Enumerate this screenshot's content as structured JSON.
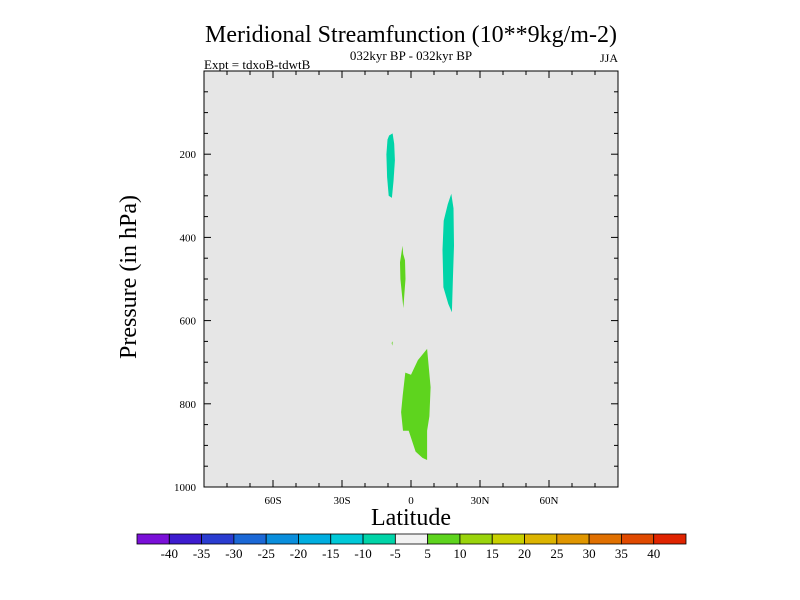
{
  "chart_data": {
    "type": "heatmap",
    "title": "Meridional Streamfunction (10**9kg/m-2)",
    "subtitle": "032kyr BP - 032kyr BP",
    "left_note": "Expt = tdxoB-tdwtB",
    "right_note": "JJA",
    "xlabel": "Latitude",
    "ylabel": "Pressure (in hPa)",
    "xlim": [
      -90,
      90
    ],
    "ylim": [
      0,
      1000
    ],
    "y_inverted": true,
    "x_ticks": [
      {
        "value": -60,
        "label": "60S"
      },
      {
        "value": -30,
        "label": "30S"
      },
      {
        "value": 0,
        "label": "0"
      },
      {
        "value": 30,
        "label": "30N"
      },
      {
        "value": 60,
        "label": "60N"
      }
    ],
    "y_ticks": [
      {
        "value": 200,
        "label": "200"
      },
      {
        "value": 400,
        "label": "400"
      },
      {
        "value": 600,
        "label": "600"
      },
      {
        "value": 800,
        "label": "800"
      },
      {
        "value": 1000,
        "label": "1000"
      }
    ],
    "background_color": "#e6e6e6",
    "regions": [
      {
        "name": "negative-cell-upper",
        "color": "#00d4a8",
        "polygon": [
          [
            -9.5,
            155
          ],
          [
            -8,
            150
          ],
          [
            -7.3,
            175
          ],
          [
            -7,
            215
          ],
          [
            -7.6,
            265
          ],
          [
            -8.3,
            305
          ],
          [
            -9.7,
            300
          ],
          [
            -10.4,
            255
          ],
          [
            -10.7,
            200
          ],
          [
            -10.2,
            165
          ]
        ]
      },
      {
        "name": "negative-cell-mid",
        "color": "#00d4a8",
        "polygon": [
          [
            16,
            320
          ],
          [
            17.5,
            295
          ],
          [
            18.5,
            330
          ],
          [
            18.7,
            420
          ],
          [
            18.2,
            500
          ],
          [
            17.8,
            580
          ],
          [
            16.2,
            560
          ],
          [
            14.1,
            520
          ],
          [
            13.7,
            430
          ],
          [
            14.2,
            360
          ]
        ]
      },
      {
        "name": "positive-strip",
        "color": "#5ed41e",
        "polygon": [
          [
            -3.7,
            420
          ],
          [
            -3.4,
            440
          ],
          [
            -2.6,
            455
          ],
          [
            -2.4,
            500
          ],
          [
            -3,
            545
          ],
          [
            -3.3,
            570
          ],
          [
            -3.8,
            545
          ],
          [
            -4.6,
            500
          ],
          [
            -4.8,
            460
          ],
          [
            -4.2,
            440
          ]
        ]
      },
      {
        "name": "positive-dot",
        "color": "#5ed41e",
        "polygon": [
          [
            -8.2,
            650
          ],
          [
            -8,
            652
          ],
          [
            -8.1,
            660
          ],
          [
            -8.4,
            655
          ]
        ]
      },
      {
        "name": "positive-cell-lower",
        "color": "#5ed41e",
        "polygon": [
          [
            -2.5,
            725
          ],
          [
            0,
            730
          ],
          [
            3,
            695
          ],
          [
            7,
            668
          ],
          [
            8.5,
            760
          ],
          [
            8,
            830
          ],
          [
            7,
            865
          ],
          [
            7,
            935
          ],
          [
            5,
            930
          ],
          [
            2,
            915
          ],
          [
            -1,
            865
          ],
          [
            -3.5,
            865
          ],
          [
            -4.3,
            820
          ],
          [
            -3.6,
            780
          ]
        ]
      }
    ],
    "colorbar": {
      "labels": [
        "-40",
        "-35",
        "-30",
        "-25",
        "-20",
        "-15",
        "-10",
        "-5",
        "5",
        "10",
        "15",
        "20",
        "25",
        "30",
        "35",
        "40"
      ],
      "colors": [
        "#7a10d8",
        "#3d1ccf",
        "#2a3cd0",
        "#1b68d6",
        "#0a8edc",
        "#00aee0",
        "#00c9d8",
        "#00d4a8",
        "#f2f2f2",
        "#5ed41e",
        "#9ad40c",
        "#c8d000",
        "#dcb400",
        "#e09600",
        "#e07000",
        "#e04a00",
        "#e02400"
      ]
    }
  }
}
